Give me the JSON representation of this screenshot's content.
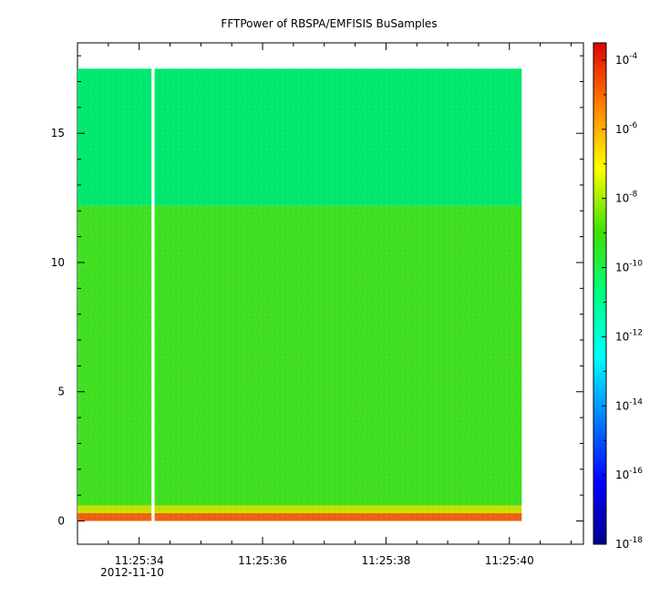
{
  "chart_data": {
    "type": "heatmap",
    "title": "FFTPower of RBSPA/EMFISIS  BuSamples",
    "xlabel": "",
    "ylabel": "",
    "x_tick_labels": [
      "11:25:34",
      "11:25:36",
      "11:25:38",
      "11:25:40"
    ],
    "x_date_label": "2012-11-10",
    "x_tick_seconds": [
      34,
      36,
      38,
      40
    ],
    "x_range_seconds": [
      33.0,
      41.2
    ],
    "data_x_range_seconds": [
      33.0,
      40.2
    ],
    "gap_x_seconds": [
      34.2,
      34.25
    ],
    "y_ticks": [
      0,
      5,
      10,
      15
    ],
    "y_range": [
      -0.9,
      18.5
    ],
    "data_y_range": [
      0,
      17.5
    ],
    "colorbar": {
      "scale": "log",
      "range_exponents": [
        -18,
        -3.5
      ],
      "tick_base": "10",
      "tick_exponents": [
        "-4",
        "-6",
        "-8",
        "-10",
        "-12",
        "-14",
        "-16",
        "-18"
      ],
      "tick_values": [
        -4,
        -6,
        -8,
        -10,
        -12,
        -14,
        -16,
        -18
      ]
    },
    "bands": [
      {
        "y": [
          12.2,
          17.5
        ],
        "log10_power": -12.4,
        "description_color": "#00e86e"
      },
      {
        "y": [
          0.6,
          12.2
        ],
        "log10_power": -10.4,
        "description_color": "#40e020"
      },
      {
        "y": [
          0.3,
          0.6
        ],
        "log10_power": -9.0,
        "description_color": "#c8e000"
      },
      {
        "y": [
          0.0,
          0.3
        ],
        "log10_power": -6.5,
        "description_color": "#f06010"
      }
    ],
    "grid": false,
    "legend": "colorbar-right"
  }
}
